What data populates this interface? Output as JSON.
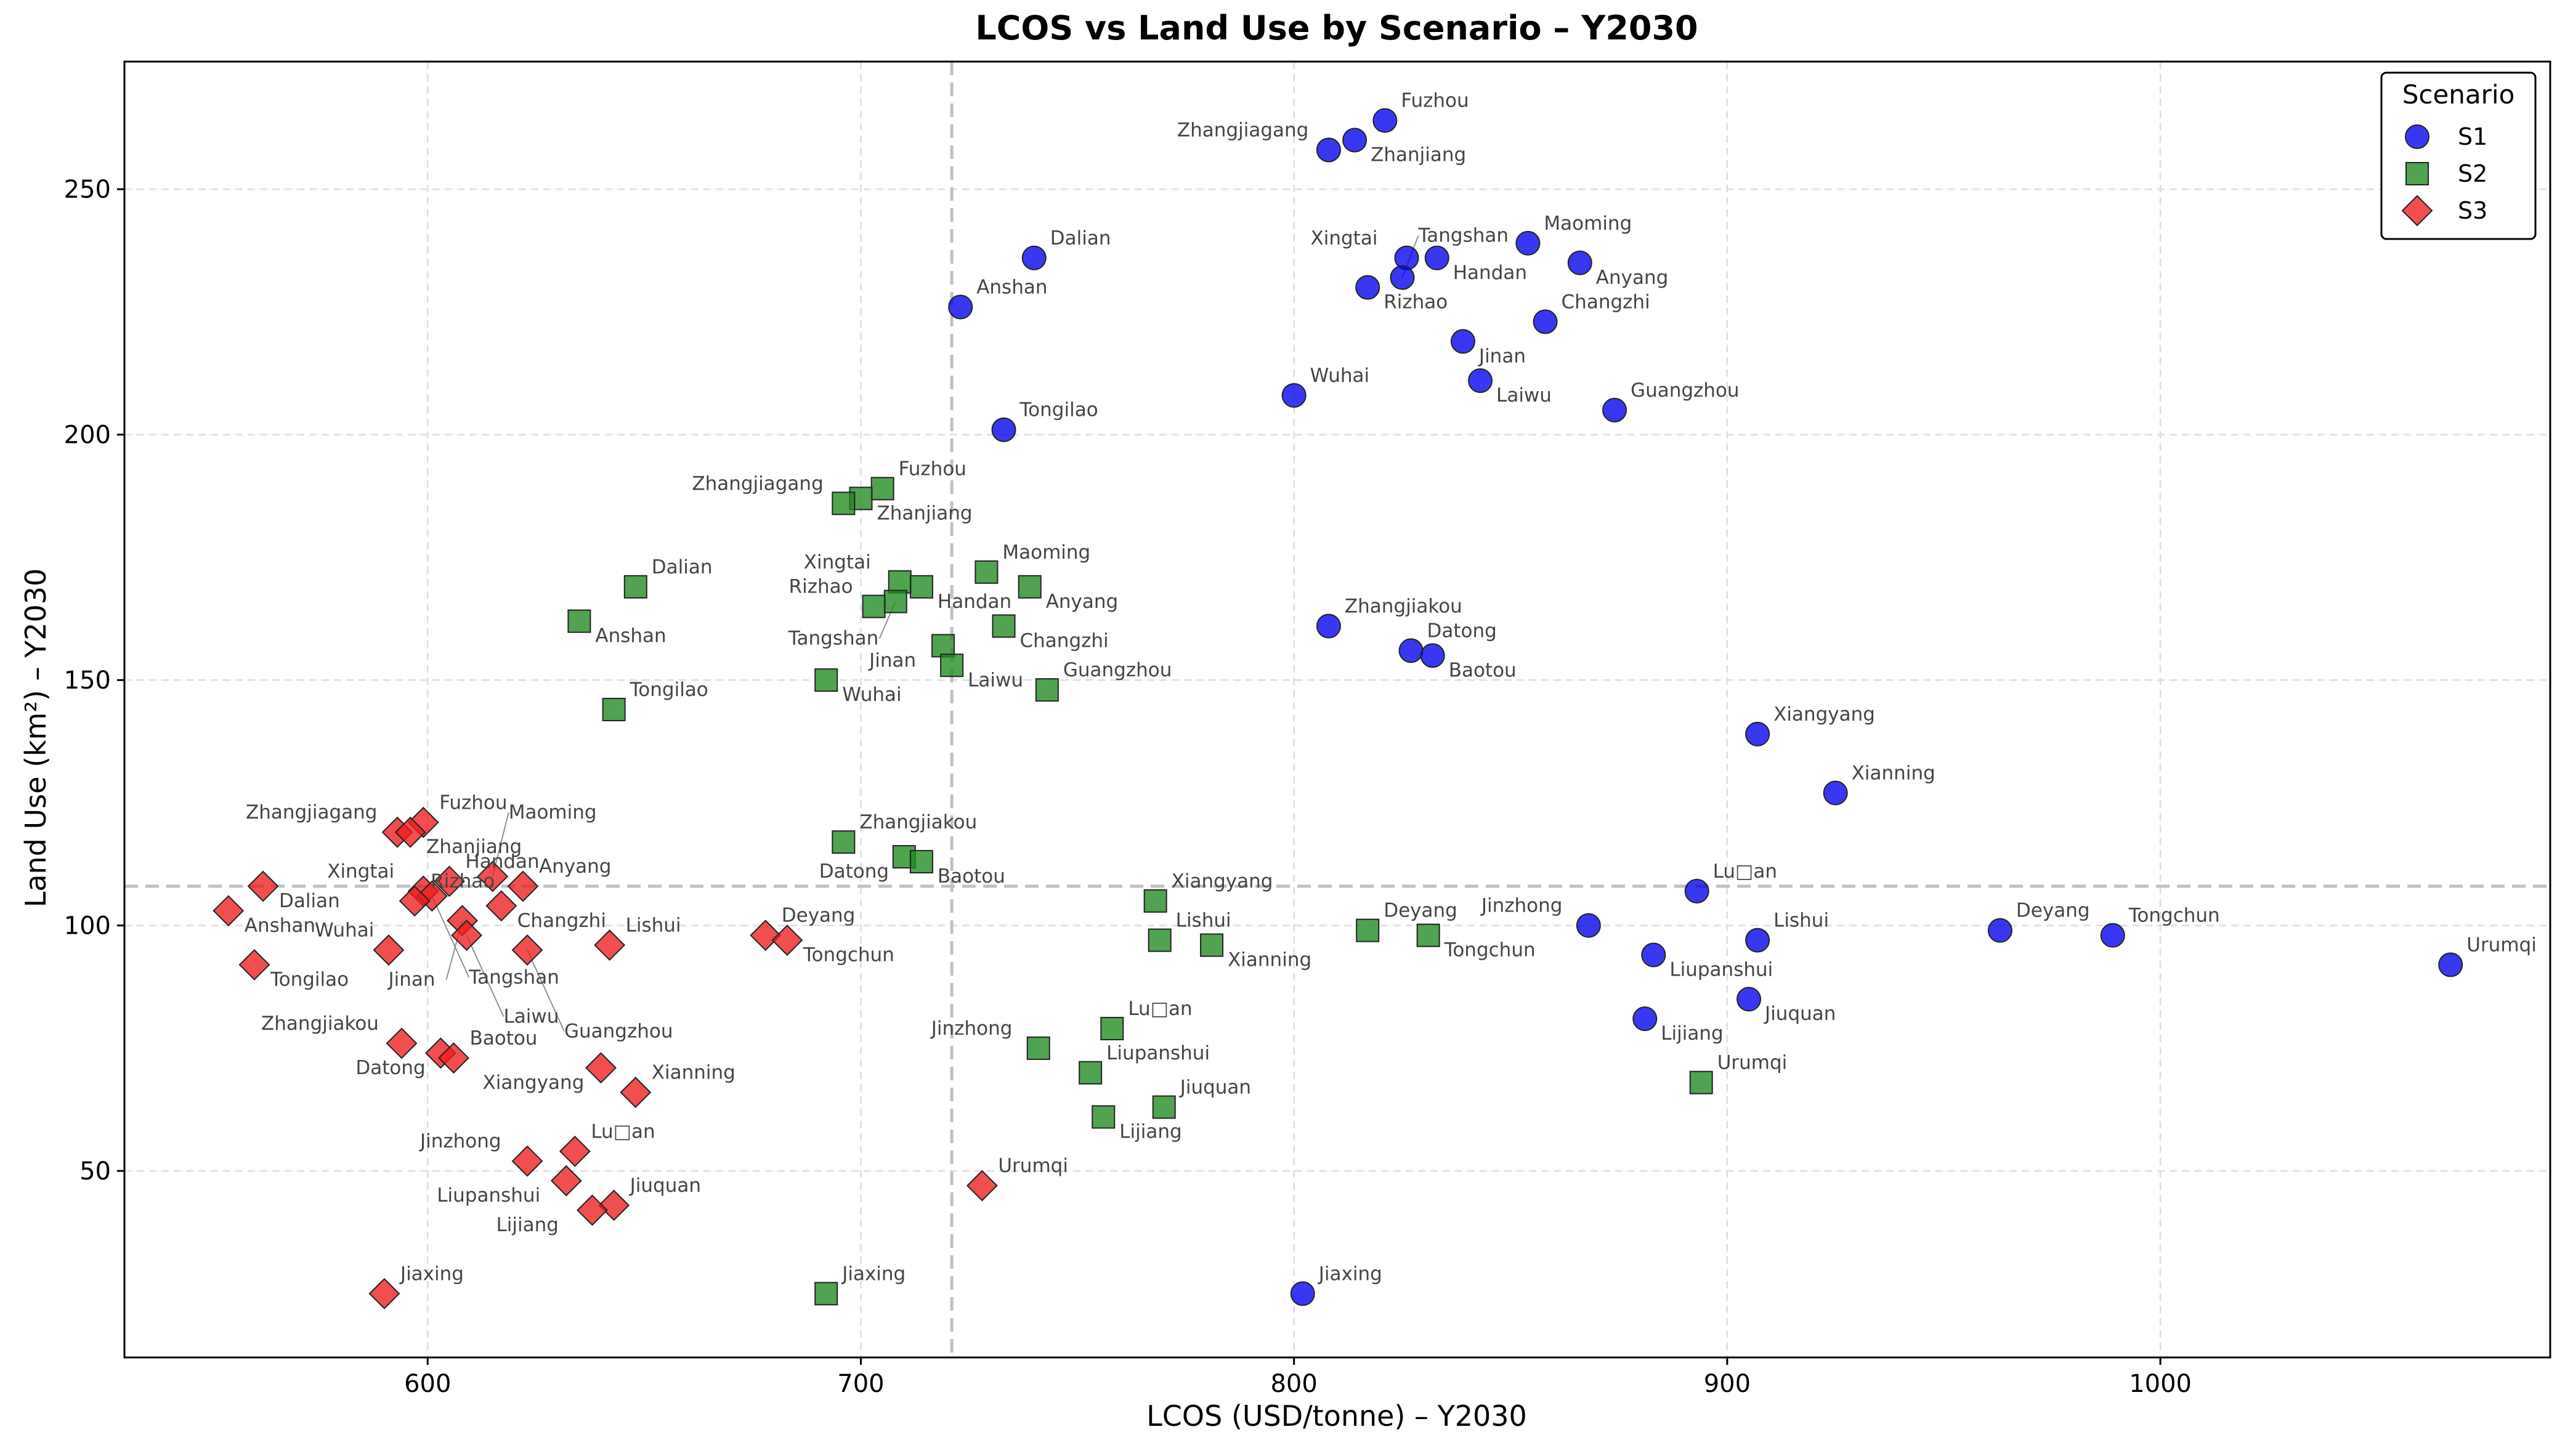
{
  "chart_data": {
    "type": "scatter",
    "title": "LCOS vs Land Use by Scenario – Y2030",
    "xlabel": "LCOS (USD/tonne) – Y2030",
    "ylabel": "Land Use (km²) – Y2030",
    "xlim": [
      530,
      1090
    ],
    "ylim": [
      12,
      276
    ],
    "x_ticks": [
      600,
      700,
      800,
      900,
      1000
    ],
    "y_ticks": [
      50,
      100,
      150,
      200,
      250
    ],
    "grid": true,
    "reference_lines": {
      "x": 721,
      "y": 108
    },
    "legend": {
      "title": "Scenario",
      "placement": "top-right"
    },
    "series": [
      {
        "name": "S1",
        "marker": "circle",
        "color": "#0000ee",
        "points": [
          {
            "label": "Fuzhou",
            "x": 821,
            "y": 264
          },
          {
            "label": "Zhanjiang",
            "x": 814,
            "y": 260
          },
          {
            "label": "Zhangjiagang",
            "x": 808,
            "y": 258
          },
          {
            "label": "Maoming",
            "x": 854,
            "y": 239
          },
          {
            "label": "Xingtai",
            "x": 826,
            "y": 236
          },
          {
            "label": "Handan",
            "x": 833,
            "y": 236
          },
          {
            "label": "Dalian",
            "x": 740,
            "y": 236
          },
          {
            "label": "Anyang",
            "x": 866,
            "y": 235
          },
          {
            "label": "Tangshan",
            "x": 825,
            "y": 232
          },
          {
            "label": "Rizhao",
            "x": 817,
            "y": 230
          },
          {
            "label": "Anshan",
            "x": 723,
            "y": 226
          },
          {
            "label": "Changzhi",
            "x": 858,
            "y": 223
          },
          {
            "label": "Jinan",
            "x": 839,
            "y": 219
          },
          {
            "label": "Laiwu",
            "x": 843,
            "y": 211
          },
          {
            "label": "Wuhai",
            "x": 800,
            "y": 208
          },
          {
            "label": "Guangzhou",
            "x": 874,
            "y": 205
          },
          {
            "label": "Tongilao",
            "x": 733,
            "y": 201
          },
          {
            "label": "Zhangjiakou",
            "x": 808,
            "y": 161
          },
          {
            "label": "Datong",
            "x": 827,
            "y": 156
          },
          {
            "label": "Baotou",
            "x": 832,
            "y": 155
          },
          {
            "label": "Xiangyang",
            "x": 907,
            "y": 139
          },
          {
            "label": "Xianning",
            "x": 925,
            "y": 127
          },
          {
            "label": "Lu□an",
            "x": 893,
            "y": 107
          },
          {
            "label": "Jinzhong",
            "x": 868,
            "y": 100
          },
          {
            "label": "Deyang",
            "x": 963,
            "y": 99
          },
          {
            "label": "Tongchun",
            "x": 989,
            "y": 98
          },
          {
            "label": "Lishui",
            "x": 907,
            "y": 97
          },
          {
            "label": "Liupanshui",
            "x": 883,
            "y": 94
          },
          {
            "label": "Urumqi",
            "x": 1067,
            "y": 92
          },
          {
            "label": "Jiuquan",
            "x": 905,
            "y": 85
          },
          {
            "label": "Lijiang",
            "x": 881,
            "y": 81
          },
          {
            "label": "Jiaxing",
            "x": 802,
            "y": 25
          }
        ]
      },
      {
        "name": "S2",
        "marker": "square",
        "color": "#1f8a1f",
        "points": [
          {
            "label": "Fuzhou",
            "x": 705,
            "y": 189
          },
          {
            "label": "Zhanjiang",
            "x": 700,
            "y": 187
          },
          {
            "label": "Zhangjiagang",
            "x": 696,
            "y": 186
          },
          {
            "label": "Maoming",
            "x": 729,
            "y": 172
          },
          {
            "label": "Xingtai",
            "x": 709,
            "y": 170
          },
          {
            "label": "Dalian",
            "x": 648,
            "y": 169
          },
          {
            "label": "Handan",
            "x": 714,
            "y": 169
          },
          {
            "label": "Anyang",
            "x": 739,
            "y": 169
          },
          {
            "label": "Tangshan",
            "x": 708,
            "y": 166
          },
          {
            "label": "Rizhao",
            "x": 703,
            "y": 165
          },
          {
            "label": "Anshan",
            "x": 635,
            "y": 162
          },
          {
            "label": "Changzhi",
            "x": 733,
            "y": 161
          },
          {
            "label": "Jinan",
            "x": 719,
            "y": 157
          },
          {
            "label": "Laiwu",
            "x": 721,
            "y": 153
          },
          {
            "label": "Wuhai",
            "x": 692,
            "y": 150
          },
          {
            "label": "Guangzhou",
            "x": 743,
            "y": 148
          },
          {
            "label": "Tongilao",
            "x": 643,
            "y": 144
          },
          {
            "label": "Zhangjiakou",
            "x": 696,
            "y": 117
          },
          {
            "label": "Datong",
            "x": 710,
            "y": 114
          },
          {
            "label": "Baotou",
            "x": 714,
            "y": 113
          },
          {
            "label": "Xiangyang",
            "x": 768,
            "y": 105
          },
          {
            "label": "Deyang",
            "x": 817,
            "y": 99
          },
          {
            "label": "Tongchun",
            "x": 831,
            "y": 98
          },
          {
            "label": "Lishui",
            "x": 769,
            "y": 97
          },
          {
            "label": "Xianning",
            "x": 781,
            "y": 96
          },
          {
            "label": "Lu□an",
            "x": 758,
            "y": 79
          },
          {
            "label": "Jinzhong",
            "x": 741,
            "y": 75
          },
          {
            "label": "Liupanshui",
            "x": 753,
            "y": 70
          },
          {
            "label": "Urumqi",
            "x": 894,
            "y": 68
          },
          {
            "label": "Jiuquan",
            "x": 770,
            "y": 63
          },
          {
            "label": "Lijiang",
            "x": 756,
            "y": 61
          },
          {
            "label": "Jiaxing",
            "x": 692,
            "y": 25
          }
        ]
      },
      {
        "name": "S3",
        "marker": "diamond",
        "color": "#ee1c1c",
        "points": [
          {
            "label": "Zhangjiagang",
            "x": 593,
            "y": 119
          },
          {
            "label": "Fuzhou",
            "x": 599,
            "y": 121
          },
          {
            "label": "Zhanjiang",
            "x": 596,
            "y": 119
          },
          {
            "label": "Maoming",
            "x": 615,
            "y": 110
          },
          {
            "label": "Xingtai",
            "x": 599,
            "y": 107
          },
          {
            "label": "Dalian",
            "x": 562,
            "y": 108
          },
          {
            "label": "Handan",
            "x": 605,
            "y": 109
          },
          {
            "label": "Anyang",
            "x": 622,
            "y": 108
          },
          {
            "label": "Tangshan",
            "x": 601,
            "y": 106
          },
          {
            "label": "Anshan",
            "x": 554,
            "y": 103
          },
          {
            "label": "Rizhao",
            "x": 597,
            "y": 105
          },
          {
            "label": "Changzhi",
            "x": 617,
            "y": 104
          },
          {
            "label": "Jinan",
            "x": 608,
            "y": 101
          },
          {
            "label": "Laiwu",
            "x": 609,
            "y": 98
          },
          {
            "label": "Lishui",
            "x": 642,
            "y": 96
          },
          {
            "label": "Guangzhou",
            "x": 623,
            "y": 95
          },
          {
            "label": "Wuhai",
            "x": 591,
            "y": 95
          },
          {
            "label": "Deyang",
            "x": 678,
            "y": 98
          },
          {
            "label": "Tongchun",
            "x": 683,
            "y": 97
          },
          {
            "label": "Tongilao",
            "x": 560,
            "y": 92
          },
          {
            "label": "Zhangjiakou",
            "x": 594,
            "y": 76
          },
          {
            "label": "Datong",
            "x": 603,
            "y": 74
          },
          {
            "label": "Baotou",
            "x": 606,
            "y": 73
          },
          {
            "label": "Xiangyang",
            "x": 640,
            "y": 71
          },
          {
            "label": "Xianning",
            "x": 648,
            "y": 66
          },
          {
            "label": "Lu□an",
            "x": 634,
            "y": 54
          },
          {
            "label": "Jinzhong",
            "x": 623,
            "y": 52
          },
          {
            "label": "Liupanshui",
            "x": 632,
            "y": 48
          },
          {
            "label": "Jiuquan",
            "x": 643,
            "y": 43
          },
          {
            "label": "Lijiang",
            "x": 638,
            "y": 42
          },
          {
            "label": "Urumqi",
            "x": 728,
            "y": 47
          },
          {
            "label": "Jiaxing",
            "x": 590,
            "y": 25
          }
        ]
      }
    ]
  }
}
